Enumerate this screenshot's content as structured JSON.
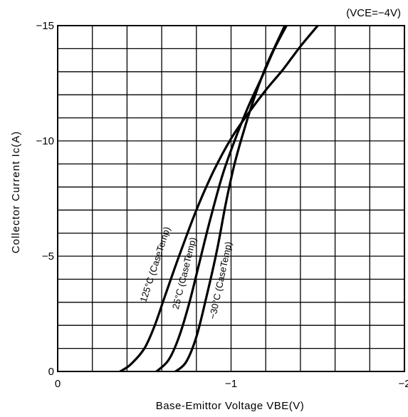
{
  "chart_data": {
    "type": "line",
    "title": "",
    "condition_note": "(VCE=−4V)",
    "xlabel": "Base-Emittor Voltage VBE(V)",
    "ylabel": "Collector Current Ic(A)",
    "xlim": [
      0,
      -2
    ],
    "ylim": [
      0,
      -15
    ],
    "x_ticks": [
      0,
      -1,
      -2
    ],
    "x_tick_labels": [
      "0",
      "−1",
      "−2"
    ],
    "y_ticks": [
      0,
      -5,
      -10,
      -15
    ],
    "y_tick_labels": [
      "0",
      "−5",
      "−10",
      "−15"
    ],
    "grid": true,
    "x_grid_step": -0.2,
    "y_grid_step": -1,
    "series": [
      {
        "name": "125°C (CaseTemp)",
        "x": [
          -0.36,
          -0.42,
          -0.5,
          -0.56,
          -0.62,
          -0.7,
          -0.8,
          -0.9,
          -1.0,
          -1.1,
          -1.2,
          -1.3,
          -1.4,
          -1.5
        ],
        "y": [
          0,
          -0.3,
          -1.0,
          -2.0,
          -3.3,
          -5.0,
          -7.0,
          -8.7,
          -10.1,
          -11.2,
          -12.2,
          -13.1,
          -14.1,
          -15.0
        ]
      },
      {
        "name": "25°C (CaseTemp)",
        "x": [
          -0.57,
          -0.64,
          -0.7,
          -0.76,
          -0.82,
          -0.88,
          -0.95,
          -1.02,
          -1.1,
          -1.18,
          -1.25,
          -1.32
        ],
        "y": [
          0,
          -0.5,
          -1.5,
          -3.0,
          -4.8,
          -6.6,
          -8.5,
          -10.0,
          -11.5,
          -12.8,
          -14.0,
          -15.0
        ]
      },
      {
        "name": "−30°C (CaseTemp)",
        "x": [
          -0.68,
          -0.74,
          -0.8,
          -0.86,
          -0.92,
          -0.97,
          -1.02,
          -1.08,
          -1.14,
          -1.2,
          -1.26,
          -1.31
        ],
        "y": [
          0,
          -0.4,
          -1.5,
          -3.3,
          -5.3,
          -7.3,
          -9.0,
          -10.6,
          -12.0,
          -13.2,
          -14.2,
          -15.0
        ]
      }
    ],
    "curve_labels": [
      "125°C (CaseTemp)",
      "25°C (CaseTemp)",
      "−30°C (CaseTemp)"
    ],
    "colors": {
      "line": "#000000",
      "grid": "#000000",
      "background": "#ffffff"
    }
  }
}
